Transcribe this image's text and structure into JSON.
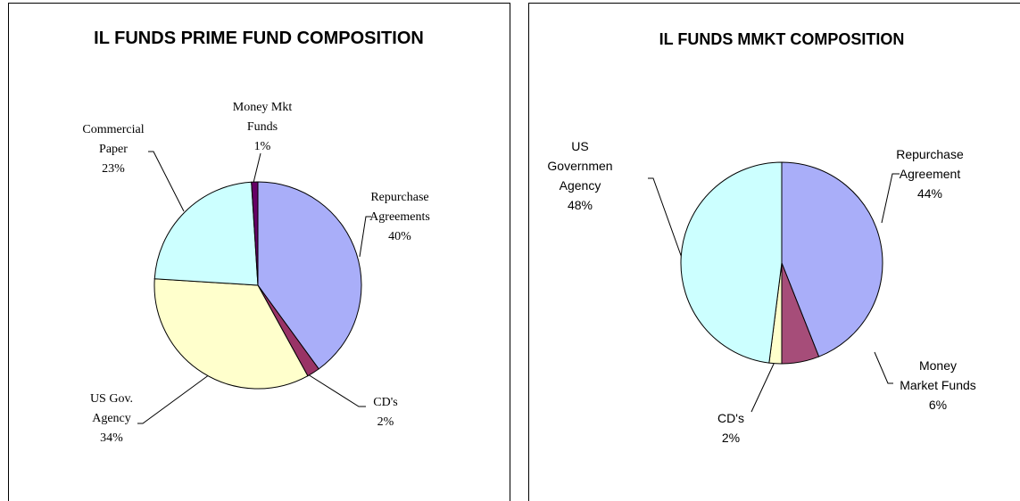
{
  "chart_data": [
    {
      "type": "pie",
      "title": "IL FUNDS PRIME FUND COMPOSITION",
      "categories": [
        "Repurchase\nAgreements",
        "CD's",
        "US Gov.\nAgency",
        "Commercial\nPaper",
        "Money Mkt\nFunds"
      ],
      "values": [
        40,
        2,
        34,
        23,
        1
      ],
      "value_labels": [
        "40%",
        "2%",
        "34%",
        "23%",
        "1%"
      ],
      "colors": [
        "#a9aef9",
        "#993366",
        "#ffffcc",
        "#ccffff",
        "#660066"
      ]
    },
    {
      "type": "pie",
      "title": "IL FUNDS MMKT COMPOSITION",
      "categories": [
        "Repurchase\nAgreement",
        "Money\nMarket Funds",
        "CD's",
        "US\nGovernmen\nAgency"
      ],
      "values": [
        44,
        6,
        2,
        48
      ],
      "value_labels": [
        "44%",
        "6%",
        "2%",
        "48%"
      ],
      "colors": [
        "#a9aef9",
        "#a64d79",
        "#ffffcc",
        "#ccffff"
      ]
    }
  ]
}
